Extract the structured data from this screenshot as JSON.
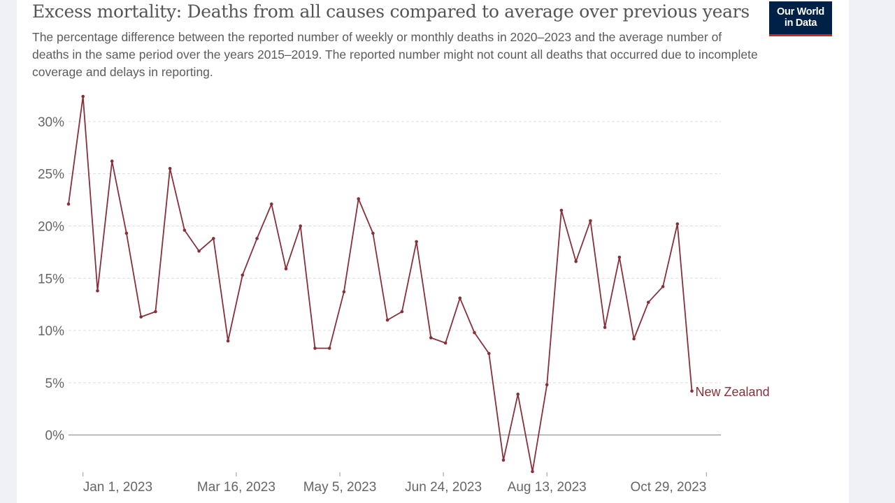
{
  "header": {
    "title": "Excess mortality: Deaths from all causes compared to average over previous years",
    "subtitle": "The percentage difference between the reported number of weekly or monthly deaths in 2020–2023 and the average number of deaths in the same period over the years 2015–2019. The reported number might not count all deaths that occurred due to incomplete coverage and delays in reporting."
  },
  "logo": {
    "line1": "Our World",
    "line2": "in Data",
    "bg_color": "#002147",
    "accent_color": "#ce261e"
  },
  "colors": {
    "line": "#883039",
    "grid": "#dddddd",
    "zero_line": "#999999",
    "text": "#666666"
  },
  "chart_data": {
    "type": "line",
    "title": "Excess mortality: Deaths from all causes compared to average over previous years",
    "xlabel": "",
    "ylabel": "",
    "ylim": [
      -3.7,
      33
    ],
    "yticks": [
      0,
      5,
      10,
      15,
      20,
      25,
      30
    ],
    "ytick_labels": [
      "0%",
      "5%",
      "10%",
      "15%",
      "20%",
      "25%",
      "30%"
    ],
    "xlim_days": [
      -7,
      308
    ],
    "xticks": [
      {
        "day": 0,
        "label": "Jan 1, 2023"
      },
      {
        "day": 74,
        "label": "Mar 16, 2023"
      },
      {
        "day": 124,
        "label": "May 5, 2023"
      },
      {
        "day": 174,
        "label": "Jun 24, 2023"
      },
      {
        "day": 224,
        "label": "Aug 13, 2023"
      },
      {
        "day": 301,
        "label": "Oct 29, 2023"
      }
    ],
    "series": [
      {
        "name": "New Zealand",
        "x_start_day": -7,
        "x_step_days": 7,
        "values": [
          22.1,
          32.4,
          13.8,
          26.2,
          19.3,
          11.3,
          11.8,
          25.5,
          19.6,
          17.6,
          18.8,
          9.0,
          15.3,
          18.8,
          22.1,
          15.9,
          20.0,
          8.3,
          8.3,
          13.7,
          22.6,
          19.3,
          11.0,
          11.8,
          18.5,
          9.3,
          8.8,
          13.1,
          9.8,
          7.8,
          -2.4,
          3.9,
          -3.5,
          4.8,
          21.5,
          16.6,
          20.5,
          10.3,
          17.0,
          9.2,
          12.7,
          14.2,
          20.2,
          4.2
        ]
      }
    ]
  }
}
